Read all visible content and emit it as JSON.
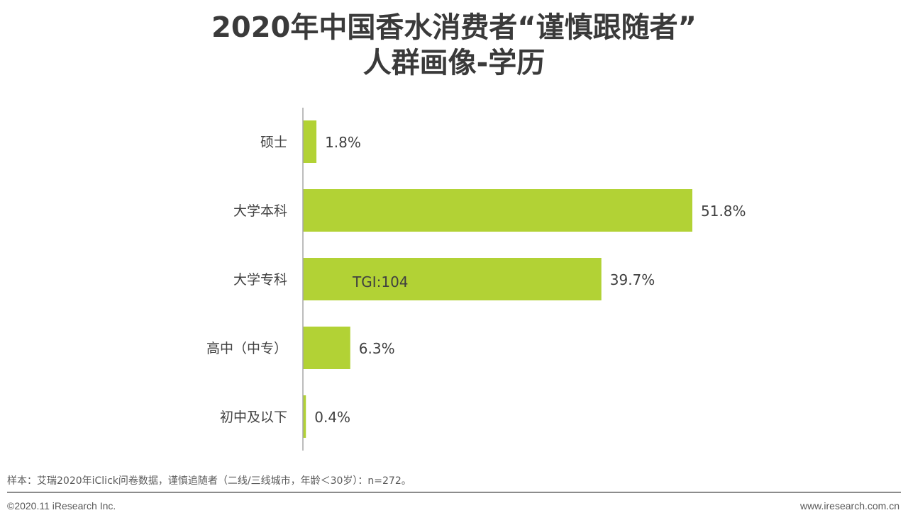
{
  "title_line1": "2020年中国香水消费者“谨慎跟随者”",
  "title_line2": "人群画像-学历",
  "chart_data": {
    "type": "bar",
    "orientation": "horizontal",
    "categories": [
      "硕士",
      "大学本科",
      "大学专科",
      "高中（中专）",
      "初中及以下"
    ],
    "values": [
      1.8,
      51.8,
      39.7,
      6.3,
      0.4
    ],
    "value_labels": [
      "1.8%",
      "51.8%",
      "39.7%",
      "6.3%",
      "0.4%"
    ],
    "unit": "%",
    "annotation": "TGI:104",
    "bar_color": "#b2d235",
    "grid": false,
    "legend": "none"
  },
  "footer": {
    "note": "样本：艾瑞2020年iClick问卷数据，谨慎追随者（二线/三线城市，年龄＜30岁）：n=272。",
    "copyright": "©2020.11 iResearch Inc.",
    "website": "www.iresearch.com.cn"
  }
}
